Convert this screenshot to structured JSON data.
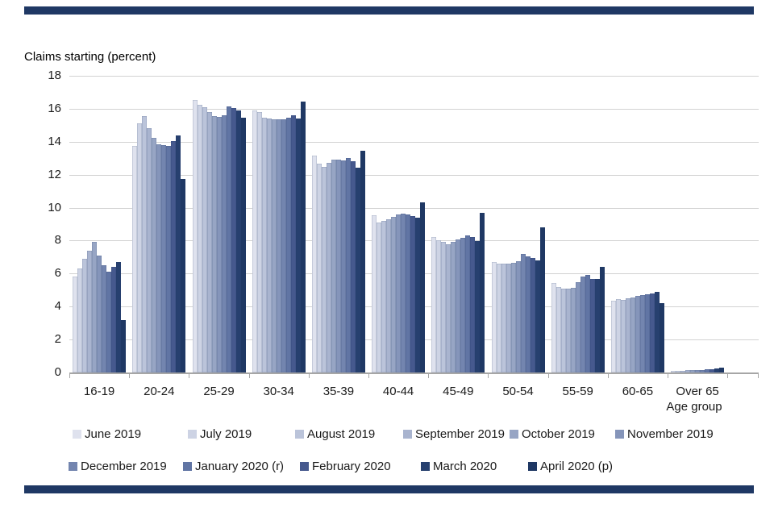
{
  "page": {
    "accent_color": "#1f3864",
    "grid_color": "#d2d2d2",
    "axis_color": "#a6a6a6"
  },
  "chart_data": {
    "type": "bar",
    "title": "Claims starting (percent)",
    "xlabel": "Age group",
    "ylim": [
      0,
      18
    ],
    "yticks": [
      0,
      2,
      4,
      6,
      8,
      10,
      12,
      14,
      16,
      18
    ],
    "grid": "horizontal",
    "legend_position": "bottom",
    "categories": [
      "16-19",
      "20-24",
      "25-29",
      "30-34",
      "35-39",
      "40-44",
      "45-49",
      "50-54",
      "55-59",
      "60-65",
      "Over 65"
    ],
    "series": [
      {
        "name": "June 2019",
        "color": "#dfe2ee",
        "values": [
          5.8,
          13.75,
          16.55,
          15.9,
          13.15,
          9.55,
          8.2,
          6.7,
          5.45,
          4.35,
          0.1
        ]
      },
      {
        "name": "July 2019",
        "color": "#cdd3e4",
        "values": [
          6.3,
          15.1,
          16.25,
          15.8,
          12.65,
          9.1,
          8.0,
          6.6,
          5.2,
          4.45,
          0.1
        ]
      },
      {
        "name": "August 2019",
        "color": "#bbc4da",
        "values": [
          6.9,
          15.55,
          16.1,
          15.45,
          12.45,
          9.2,
          7.9,
          6.6,
          5.1,
          4.4,
          0.1
        ]
      },
      {
        "name": "September 2019",
        "color": "#a9b4cf",
        "values": [
          7.4,
          14.8,
          15.8,
          15.4,
          12.7,
          9.3,
          7.8,
          6.6,
          5.1,
          4.5,
          0.15
        ]
      },
      {
        "name": "October 2019",
        "color": "#97a5c4",
        "values": [
          7.9,
          14.25,
          15.55,
          15.35,
          12.9,
          9.45,
          7.9,
          6.65,
          5.15,
          4.55,
          0.15
        ]
      },
      {
        "name": "November 2019",
        "color": "#8595ba",
        "values": [
          7.1,
          13.85,
          15.5,
          15.35,
          12.9,
          9.6,
          8.05,
          6.75,
          5.5,
          4.65,
          0.15
        ]
      },
      {
        "name": "December 2019",
        "color": "#7385af",
        "values": [
          6.5,
          13.8,
          15.6,
          15.35,
          12.85,
          9.65,
          8.15,
          7.2,
          5.8,
          4.7,
          0.15
        ]
      },
      {
        "name": "January 2020 (r)",
        "color": "#6175a4",
        "values": [
          6.1,
          13.75,
          16.15,
          15.45,
          13.0,
          9.6,
          8.3,
          7.05,
          5.9,
          4.75,
          0.2
        ]
      },
      {
        "name": "February 2020",
        "color": "#46598e",
        "values": [
          6.4,
          14.05,
          16.05,
          15.6,
          12.8,
          9.5,
          8.2,
          6.95,
          5.65,
          4.8,
          0.2
        ]
      },
      {
        "name": "March 2020",
        "color": "#27406f",
        "values": [
          6.7,
          14.4,
          15.9,
          15.4,
          12.4,
          9.4,
          7.95,
          6.8,
          5.65,
          4.9,
          0.25
        ]
      },
      {
        "name": "April 2020 (p)",
        "color": "#1f3864",
        "values": [
          3.2,
          11.75,
          15.45,
          16.45,
          13.45,
          10.3,
          9.7,
          8.8,
          6.4,
          4.2,
          0.3
        ]
      }
    ]
  }
}
